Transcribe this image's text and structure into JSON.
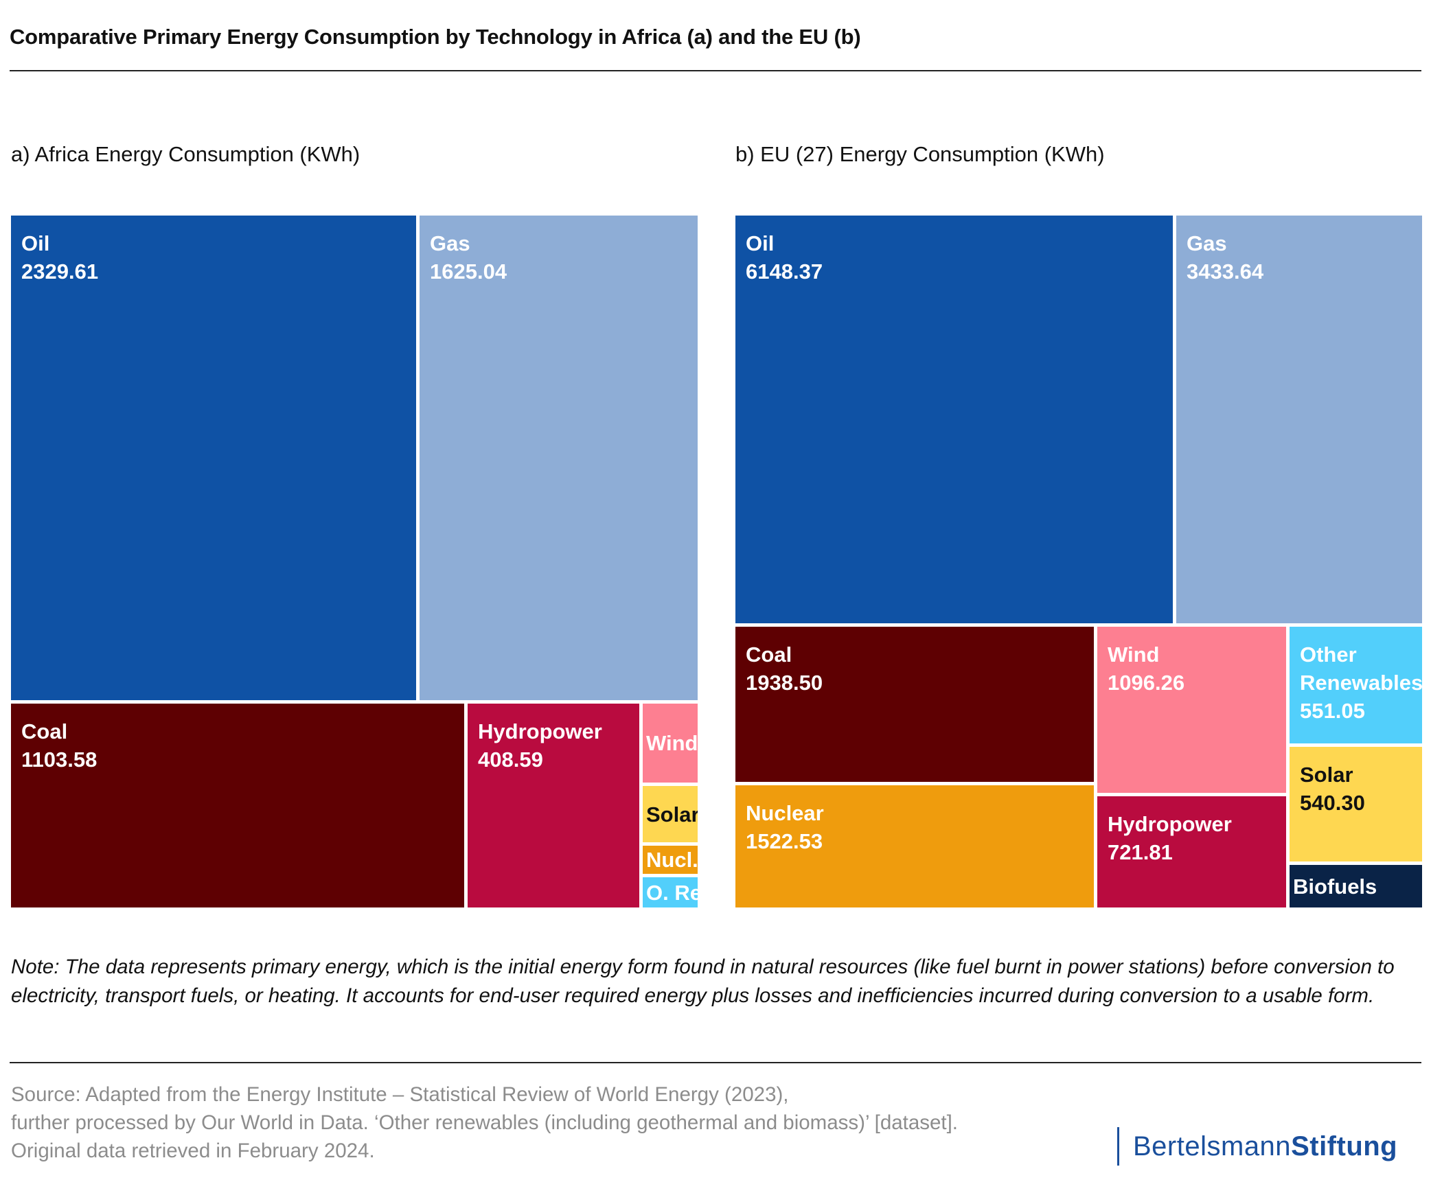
{
  "header": {
    "title": "Comparative Primary Energy Consumption by Technology in Africa (a) and the EU (b)"
  },
  "chart_data": [
    {
      "type": "treemap",
      "title": "a) Africa Energy Consumption (KWh)",
      "unit": "KWh",
      "items": [
        {
          "name": "Oil",
          "label": "Oil",
          "value": 2329.61,
          "value_label": "2329.61",
          "color": "#0f52a5",
          "text_color": "#ffffff"
        },
        {
          "name": "Gas",
          "label": "Gas",
          "value": 1625.04,
          "value_label": "1625.04",
          "color": "#8eadd6",
          "text_color": "#ffffff"
        },
        {
          "name": "Coal",
          "label": "Coal",
          "value": 1103.58,
          "value_label": "1103.58",
          "color": "#5e0002",
          "text_color": "#ffffff"
        },
        {
          "name": "Hydropower",
          "label": "Hydropower",
          "value": 408.59,
          "value_label": "408.59",
          "color": "#b90b3f",
          "text_color": "#ffffff"
        },
        {
          "name": "Wind",
          "label": "Wind",
          "value": 130,
          "value_label": "",
          "color": "#fd7f91",
          "text_color": "#ffffff"
        },
        {
          "name": "Solar",
          "label": "Solar",
          "value": 110,
          "value_label": "",
          "color": "#fed751",
          "text_color": "#111111"
        },
        {
          "name": "Nuclear",
          "label": "Nucl.",
          "value": 60,
          "value_label": "",
          "color": "#ef9c0d",
          "text_color": "#ffffff"
        },
        {
          "name": "Other Renewables",
          "label": "O. Re.",
          "value": 55,
          "value_label": "",
          "color": "#52cffb",
          "text_color": "#ffffff"
        }
      ]
    },
    {
      "type": "treemap",
      "title": "b) EU (27) Energy Consumption (KWh)",
      "unit": "KWh",
      "items": [
        {
          "name": "Oil",
          "label": "Oil",
          "value": 6148.37,
          "value_label": "6148.37",
          "color": "#0f52a5",
          "text_color": "#ffffff"
        },
        {
          "name": "Gas",
          "label": "Gas",
          "value": 3433.64,
          "value_label": "3433.64",
          "color": "#8eadd6",
          "text_color": "#ffffff"
        },
        {
          "name": "Coal",
          "label": "Coal",
          "value": 1938.5,
          "value_label": "1938.50",
          "color": "#5e0002",
          "text_color": "#ffffff"
        },
        {
          "name": "Nuclear",
          "label": "Nuclear",
          "value": 1522.53,
          "value_label": "1522.53",
          "color": "#ef9c0d",
          "text_color": "#ffffff"
        },
        {
          "name": "Wind",
          "label": "Wind",
          "value": 1096.26,
          "value_label": "1096.26",
          "color": "#fd7f91",
          "text_color": "#ffffff"
        },
        {
          "name": "Hydropower",
          "label": "Hydropower",
          "value": 721.81,
          "value_label": "721.81",
          "color": "#b90b3f",
          "text_color": "#ffffff"
        },
        {
          "name": "Other Renewables",
          "label": "Other Renewables",
          "value": 551.05,
          "value_label": "551.05",
          "color": "#52cffb",
          "text_color": "#ffffff"
        },
        {
          "name": "Solar",
          "label": "Solar",
          "value": 540.3,
          "value_label": "540.30",
          "color": "#fed751",
          "text_color": "#111111"
        },
        {
          "name": "Biofuels",
          "label": "Biofuels",
          "value": 330,
          "value_label": "",
          "color": "#0a2347",
          "text_color": "#ffffff"
        }
      ]
    }
  ],
  "note": "Note: The data represents primary energy, which is the initial energy form found in natural resources (like fuel burnt in power stations) before conversion to electricity, transport fuels, or heating. It accounts for end-user required energy plus losses and inefficiencies incurred during conversion to a usable form.",
  "source": {
    "line1": "Source: Adapted from the Energy Institute – Statistical Review of World Energy (2023),",
    "line2": "further processed by Our World in Data. ‘Other renewables (including geothermal and biomass)’ [dataset].",
    "line3": "Original data retrieved in February 2024."
  },
  "logo": {
    "part1": "Bertelsmann",
    "part2": "Stiftung",
    "color": "#1a4f9c"
  }
}
